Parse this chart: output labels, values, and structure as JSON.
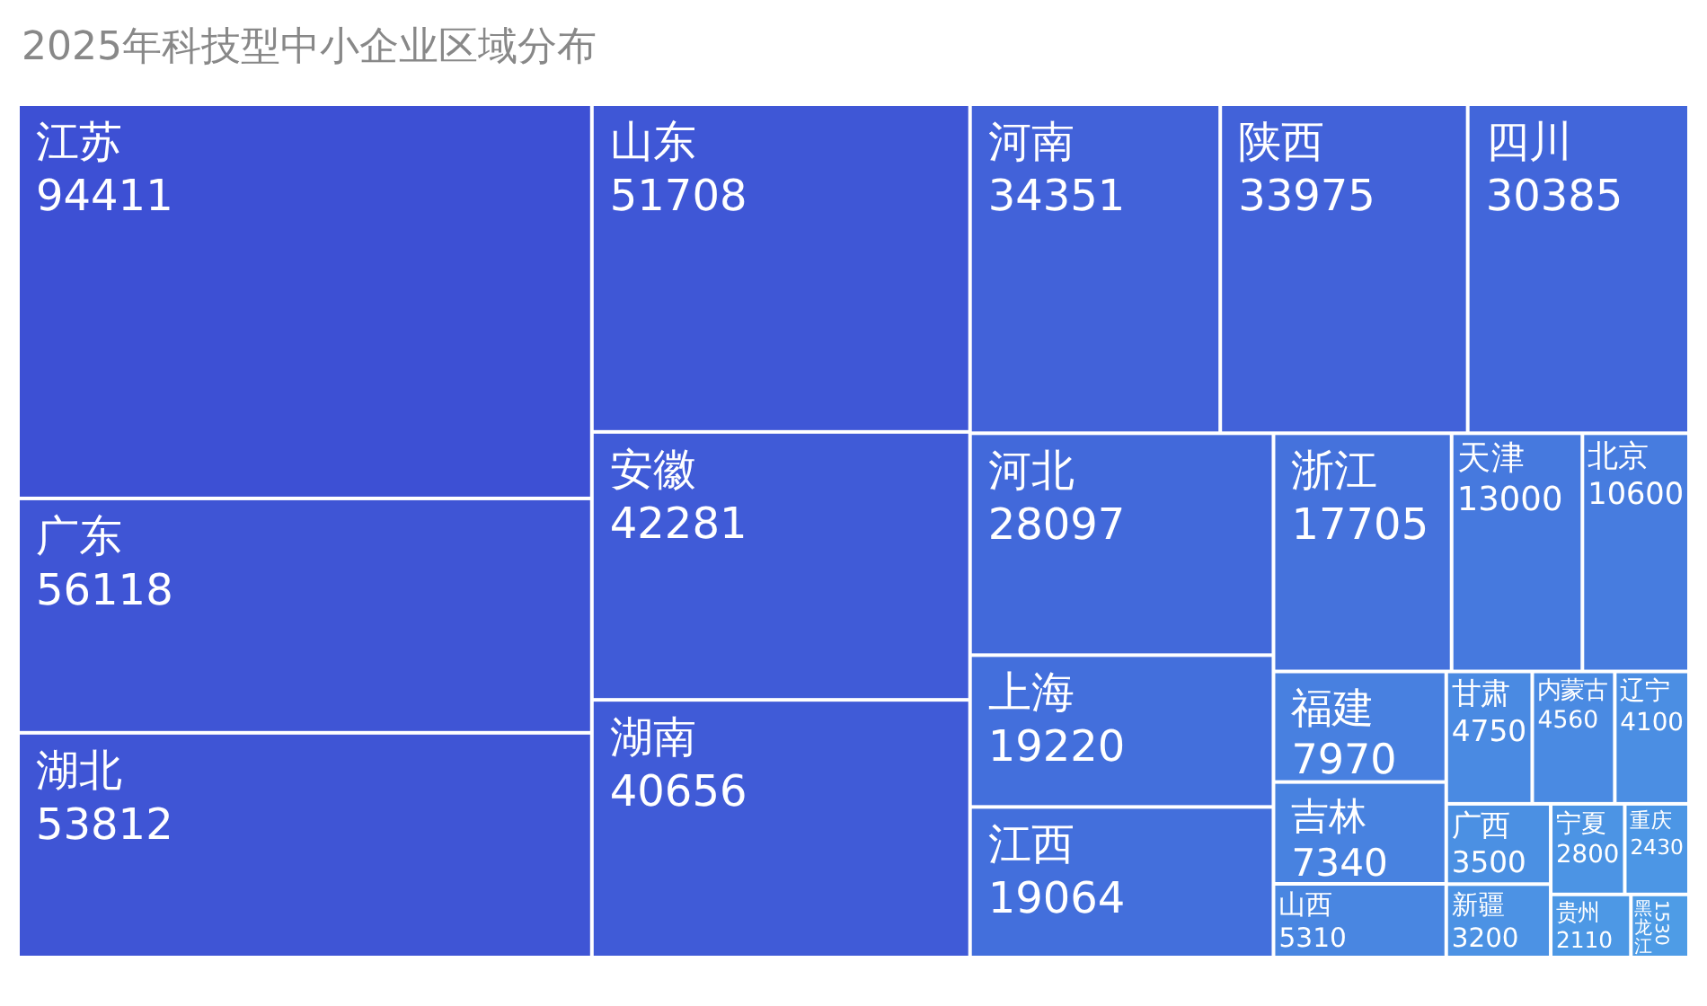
{
  "chart_data": {
    "type": "other",
    "title": "2025年科技型中小企业区域分布",
    "categories": [
      "江苏",
      "广东",
      "湖北",
      "山东",
      "安徽",
      "湖南",
      "河南",
      "陕西",
      "四川",
      "河北",
      "上海",
      "江西",
      "浙江",
      "天津",
      "北京",
      "福建",
      "吉林",
      "山西",
      "甘肃",
      "内蒙古",
      "辽宁",
      "广西",
      "新疆",
      "宁夏",
      "重庆",
      "贵州",
      "黑龙江"
    ],
    "values": [
      94411,
      56118,
      53812,
      51708,
      42281,
      40656,
      34351,
      33975,
      30385,
      28097,
      19220,
      19064,
      17705,
      13000,
      10600,
      7970,
      7340,
      5310,
      4750,
      4560,
      4100,
      3500,
      3200,
      2800,
      2430,
      2110,
      1530
    ],
    "colors": [
      "#3d50d4",
      "#3f55d5",
      "#3f55d5",
      "#3f57d6",
      "#405bd7",
      "#405bd7",
      "#4262d9",
      "#4262d9",
      "#4266da",
      "#4269da",
      "#436fdc",
      "#436fdc",
      "#4572dc",
      "#4679de",
      "#477cdf",
      "#4880e0",
      "#4882e0",
      "#4986e1",
      "#4a8ae2",
      "#4a8ae2",
      "#4b8ee3",
      "#4b90e3",
      "#4c92e4",
      "#4c94e4",
      "#4c96e5",
      "#4d98e5",
      "#4e9ce6"
    ],
    "data_labels": true
  }
}
